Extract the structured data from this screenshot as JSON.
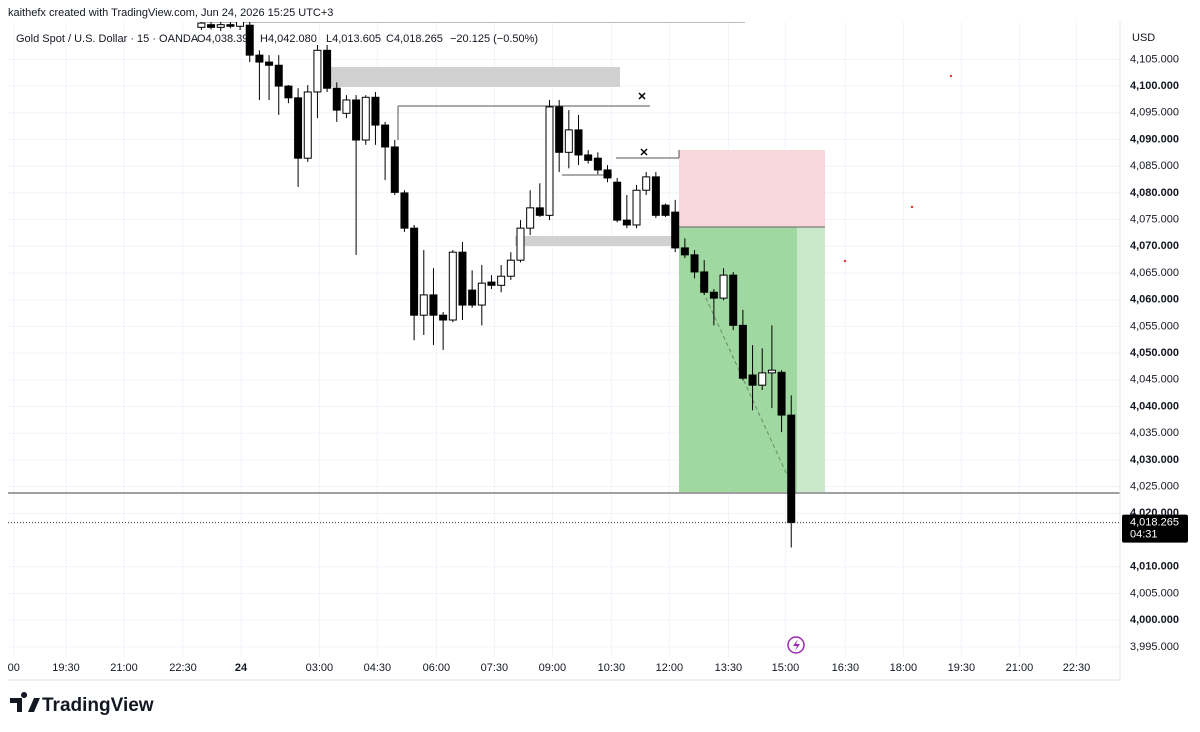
{
  "header": {
    "attribution": "kaithefx created with TradingView.com, Jun 24, 2026 15:25 UTC+3",
    "brand": "TradingView"
  },
  "chart_data": {
    "type": "candlestick",
    "title": "Gold Spot / U.S. Dollar · 15 · OANDA",
    "ohlc_labels": [
      "O4,038.39",
      "H4,042.080",
      "L4,013.605",
      "C4,018.265"
    ],
    "change_label": "−20.125 (−0.50%)",
    "y_axis_label": "USD",
    "last_price_label": "4,018.265",
    "countdown_label": "04:31",
    "up_color": "#ffffff",
    "down_color": "#000000",
    "wick_color": "#000000",
    "grid": true,
    "xlim": [
      0,
      115
    ],
    "ylim": [
      3993.1,
      4112.0
    ],
    "xticks": [
      {
        "value": 0.6,
        "label": "00"
      },
      {
        "value": 6.0,
        "label": "19:30"
      },
      {
        "value": 12.0,
        "label": "21:00"
      },
      {
        "value": 18.1,
        "label": "22:30"
      },
      {
        "value": 24.1,
        "label": "24"
      },
      {
        "value": 32.2,
        "label": "03:00"
      },
      {
        "value": 38.2,
        "label": "04:30"
      },
      {
        "value": 44.3,
        "label": "06:00"
      },
      {
        "value": 50.3,
        "label": "07:30"
      },
      {
        "value": 56.3,
        "label": "09:00"
      },
      {
        "value": 62.4,
        "label": "10:30"
      },
      {
        "value": 68.4,
        "label": "12:00"
      },
      {
        "value": 74.5,
        "label": "13:30"
      },
      {
        "value": 80.4,
        "label": "15:00"
      },
      {
        "value": 86.6,
        "label": "16:30"
      },
      {
        "value": 92.6,
        "label": "18:00"
      },
      {
        "value": 98.6,
        "label": "19:30"
      },
      {
        "value": 104.6,
        "label": "21:00"
      },
      {
        "value": 110.5,
        "label": "22:30"
      }
    ],
    "yticks": [
      {
        "value": 3995,
        "label": "3,995.000"
      },
      {
        "value": 4000,
        "label": "4,000.000"
      },
      {
        "value": 4005,
        "label": "4,005.000"
      },
      {
        "value": 4010,
        "label": "4,010.000"
      },
      {
        "value": 4020,
        "label": "4,020.000"
      },
      {
        "value": 4025,
        "label": "4,025.000"
      },
      {
        "value": 4030,
        "label": "4,030.000"
      },
      {
        "value": 4035,
        "label": "4,035.000"
      },
      {
        "value": 4040,
        "label": "4,040.000"
      },
      {
        "value": 4045,
        "label": "4,045.000"
      },
      {
        "value": 4050,
        "label": "4,050.000"
      },
      {
        "value": 4055,
        "label": "4,055.000"
      },
      {
        "value": 4060,
        "label": "4,060.000"
      },
      {
        "value": 4065,
        "label": "4,065.000"
      },
      {
        "value": 4070,
        "label": "4,070.000"
      },
      {
        "value": 4075,
        "label": "4,075.000"
      },
      {
        "value": 4080,
        "label": "4,080.000"
      },
      {
        "value": 4085,
        "label": "4,085.000"
      },
      {
        "value": 4090,
        "label": "4,090.000"
      },
      {
        "value": 4095,
        "label": "4,095.000"
      },
      {
        "value": 4100,
        "label": "4,100.000"
      },
      {
        "value": 4105,
        "label": "4,105.000"
      }
    ],
    "x": [
      20,
      21,
      22,
      23,
      24,
      25,
      26,
      27,
      28,
      29,
      30,
      31,
      32,
      33,
      34,
      35,
      36,
      37,
      38,
      39,
      40,
      41,
      42,
      43,
      44,
      45,
      46,
      47,
      48,
      49,
      50,
      51,
      52,
      53,
      54,
      55,
      56,
      57,
      58,
      59,
      60,
      61,
      62,
      63,
      64,
      65,
      66,
      67,
      68,
      69,
      70,
      71,
      72,
      73,
      74,
      75,
      76,
      77,
      78,
      79,
      80,
      81
    ],
    "open": [
      4111.0,
      4111.5,
      4111.0,
      4111.5,
      4111.2,
      4111.4,
      4105.8,
      4104.5,
      4103.9,
      4100.0,
      4097.8,
      4086.5,
      4098.9,
      4106.7,
      4099.6,
      4094.9,
      4097.4,
      4089.9,
      4097.9,
      4092.7,
      4088.6,
      4080.0,
      4073.4,
      4057.1,
      4060.9,
      4057.1,
      4056.2,
      4068.9,
      4061.8,
      4059.0,
      4063.3,
      4062.7,
      4064.4,
      4067.4,
      4073.4,
      4077.2,
      4075.8,
      4096.1,
      4087.6,
      4091.8,
      4087.1,
      4086.5,
      4084.3,
      4082.0,
      4074.9,
      4074.0,
      4080.5,
      4083.0,
      4077.7,
      4076.4,
      4069.7,
      4068.4,
      4065.2,
      4061.4,
      4060.3,
      4064.6,
      4055.2,
      4045.9,
      4044.0,
      4046.3,
      4046.4,
      4038.39
    ],
    "high": [
      4112.5,
      4112.3,
      4112.6,
      4112.8,
      4114.0,
      4113.0,
      4106.7,
      4105.8,
      4105.8,
      4100.2,
      4099.6,
      4100.2,
      4107.7,
      4107.7,
      4100.7,
      4098.3,
      4098.3,
      4098.3,
      4098.9,
      4093.3,
      4089.9,
      4080.5,
      4074.0,
      4069.3,
      4065.9,
      4057.7,
      4069.3,
      4070.8,
      4065.5,
      4066.5,
      4064.6,
      4066.5,
      4068.9,
      4074.9,
      4080.5,
      4081.8,
      4097.4,
      4097.4,
      4095.5,
      4094.6,
      4088.0,
      4087.6,
      4085.2,
      4082.8,
      4079.6,
      4081.5,
      4083.9,
      4083.9,
      4078.0,
      4078.7,
      4071.5,
      4069.3,
      4067.4,
      4062.0,
      4065.9,
      4065.2,
      4058.1,
      4051.5,
      4050.9,
      4055.2,
      4046.8,
      4042.08
    ],
    "low": [
      4110.5,
      4110.6,
      4110.3,
      4110.8,
      4110.5,
      4104.5,
      4097.4,
      4097.4,
      4094.6,
      4096.8,
      4081.1,
      4085.8,
      4094.0,
      4098.9,
      4093.3,
      4094.0,
      4068.4,
      4089.0,
      4089.0,
      4082.4,
      4079.6,
      4072.7,
      4052.4,
      4053.4,
      4051.5,
      4050.6,
      4055.8,
      4056.2,
      4058.5,
      4055.2,
      4062.0,
      4061.4,
      4063.7,
      4067.0,
      4072.1,
      4075.5,
      4074.9,
      4083.9,
      4084.6,
      4085.2,
      4085.5,
      4083.5,
      4082.0,
      4074.5,
      4073.4,
      4073.4,
      4079.6,
      4075.3,
      4075.5,
      4068.9,
      4067.8,
      4064.0,
      4060.9,
      4055.2,
      4059.9,
      4054.3,
      4044.9,
      4039.3,
      4043.1,
      4039.7,
      4035.2,
      4013.605
    ],
    "close": [
      4111.8,
      4111.0,
      4111.5,
      4111.2,
      4112.5,
      4105.8,
      4104.5,
      4103.9,
      4100.0,
      4097.8,
      4086.5,
      4098.9,
      4106.7,
      4099.6,
      4095.5,
      4097.4,
      4089.9,
      4097.9,
      4092.7,
      4088.6,
      4080.1,
      4073.4,
      4057.1,
      4060.9,
      4057.1,
      4056.2,
      4068.9,
      4059.0,
      4059.0,
      4063.1,
      4062.7,
      4064.4,
      4067.4,
      4073.4,
      4077.2,
      4075.8,
      4096.1,
      4087.6,
      4091.8,
      4087.1,
      4086.1,
      4084.3,
      4082.8,
      4074.9,
      4074.0,
      4080.5,
      4083.0,
      4075.8,
      4075.8,
      4069.7,
      4068.4,
      4065.2,
      4061.4,
      4060.3,
      4064.6,
      4055.2,
      4045.3,
      4044.0,
      4046.3,
      4046.8,
      4038.4,
      4018.265
    ]
  }
}
